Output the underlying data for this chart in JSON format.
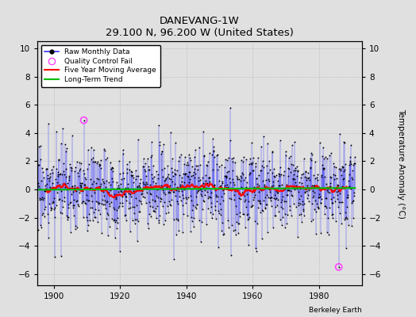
{
  "title": "DANEVANG-1W",
  "subtitle": "29.100 N, 96.200 W (United States)",
  "ylabel": "Temperature Anomaly (°C)",
  "attribution": "Berkeley Earth",
  "xlim": [
    1895.0,
    1993.0
  ],
  "ylim": [
    -6.8,
    10.5
  ],
  "yticks": [
    -6,
    -4,
    -2,
    0,
    2,
    4,
    6,
    8,
    10
  ],
  "xticks": [
    1900,
    1920,
    1940,
    1960,
    1980
  ],
  "raw_color": "#3333ff",
  "dot_color": "#000000",
  "ma_color": "#ff0000",
  "trend_color": "#00bb00",
  "qc_color": "#ff44ff",
  "bg_color": "#e0e0e0",
  "seed": 17,
  "n_months": 1152,
  "start_year": 1895.0,
  "qc_fail_index_1": 168,
  "qc_fail_value_1": 4.9,
  "qc_fail_index_2": 1092,
  "qc_fail_value_2": -5.5
}
